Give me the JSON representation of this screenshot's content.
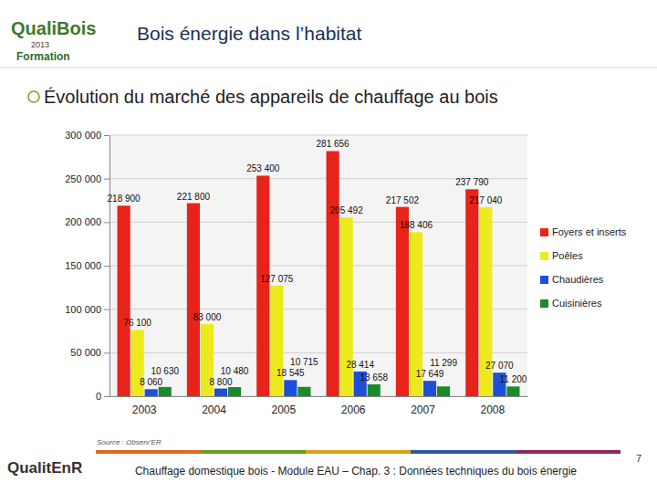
{
  "header": {
    "title": "Bois énergie dans l’habitat",
    "logo": "QualiBois",
    "logo_year": "2013",
    "logo_caption": "Formation"
  },
  "heading": "Évolution du marché des appareils de chauffage au bois",
  "chart_data": {
    "type": "bar",
    "categories": [
      "2003",
      "2004",
      "2005",
      "2006",
      "2007",
      "2008"
    ],
    "series": [
      {
        "name": "Foyers et inserts",
        "color": "#e8231a",
        "values": [
          218900,
          221800,
          253400,
          281656,
          217502,
          237790
        ],
        "value_labels": [
          "218 900",
          "221 800",
          "253 400",
          "281 656",
          "217 502",
          "237 790"
        ]
      },
      {
        "name": "Poêles",
        "color": "#ecea1c",
        "values": [
          76100,
          83000,
          127075,
          205492,
          188406,
          217040
        ],
        "value_labels": [
          "76 100",
          "83 000",
          "127 075",
          "205 492",
          "188 406",
          "217 040"
        ]
      },
      {
        "name": "Chaudières",
        "color": "#1f4fd6",
        "values": [
          8060,
          8800,
          18545,
          28414,
          17649,
          27070
        ],
        "value_labels": [
          "8 060",
          "8 800",
          "18 545",
          "28 414",
          "17 649",
          "27 070"
        ]
      },
      {
        "name": "Cuisinières",
        "color": "#1a8a2a",
        "values": [
          10630,
          10480,
          10715,
          13658,
          11299,
          11200
        ],
        "value_labels": [
          "10 630",
          "10 480",
          "10 715",
          "13 658",
          "11 299",
          "11 200"
        ]
      }
    ],
    "ylim": [
      0,
      300000
    ],
    "yticks": [
      0,
      {
        "value": 50000,
        "label": "50 000"
      },
      {
        "value": 100000,
        "label": "100 000"
      },
      {
        "value": 150000,
        "label": "150 000"
      },
      {
        "value": 200000,
        "label": "200 000"
      },
      {
        "value": 250000,
        "label": "250 000"
      },
      {
        "value": 300000,
        "label": "300 000"
      }
    ],
    "grid": true,
    "legend": "right",
    "data_labels": true
  },
  "source": "Source : Observ’ER",
  "footer": {
    "text": "Chauffage domestique bois - Module EAU – Chap. 3 : Données techniques du bois énergie",
    "logo": "QualitEnR",
    "page": "7"
  }
}
